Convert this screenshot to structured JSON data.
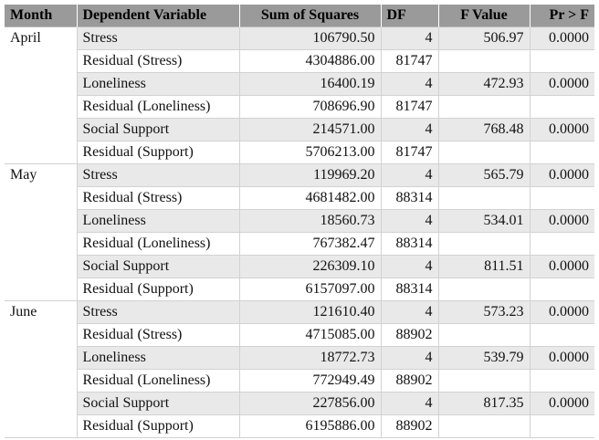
{
  "table": {
    "headers": [
      "Month",
      "Dependent Variable",
      "Sum of Squares",
      "DF",
      "F Value",
      "Pr > F"
    ],
    "groups": [
      {
        "month": "April",
        "rows": [
          {
            "dv": "Stress",
            "ss": "106790.50",
            "df": "4",
            "f": "506.97",
            "p": "0.0000"
          },
          {
            "dv": "Residual (Stress)",
            "ss": "4304886.00",
            "df": "81747",
            "f": "",
            "p": ""
          },
          {
            "dv": "Loneliness",
            "ss": "16400.19",
            "df": "4",
            "f": "472.93",
            "p": "0.0000"
          },
          {
            "dv": "Residual (Loneliness)",
            "ss": "708696.90",
            "df": "81747",
            "f": "",
            "p": ""
          },
          {
            "dv": "Social Support",
            "ss": "214571.00",
            "df": "4",
            "f": "768.48",
            "p": "0.0000"
          },
          {
            "dv": "Residual (Support)",
            "ss": "5706213.00",
            "df": "81747",
            "f": "",
            "p": ""
          }
        ]
      },
      {
        "month": "May",
        "rows": [
          {
            "dv": "Stress",
            "ss": "119969.20",
            "df": "4",
            "f": "565.79",
            "p": "0.0000"
          },
          {
            "dv": "Residual (Stress)",
            "ss": "4681482.00",
            "df": "88314",
            "f": "",
            "p": ""
          },
          {
            "dv": "Loneliness",
            "ss": "18560.73",
            "df": "4",
            "f": "534.01",
            "p": "0.0000"
          },
          {
            "dv": "Residual (Loneliness)",
            "ss": "767382.47",
            "df": "88314",
            "f": "",
            "p": ""
          },
          {
            "dv": "Social Support",
            "ss": "226309.10",
            "df": "4",
            "f": "811.51",
            "p": "0.0000"
          },
          {
            "dv": "Residual (Support)",
            "ss": "6157097.00",
            "df": "88314",
            "f": "",
            "p": ""
          }
        ]
      },
      {
        "month": "June",
        "rows": [
          {
            "dv": "Stress",
            "ss": "121610.40",
            "df": "4",
            "f": "573.23",
            "p": "0.0000"
          },
          {
            "dv": "Residual (Stress)",
            "ss": "4715085.00",
            "df": "88902",
            "f": "",
            "p": ""
          },
          {
            "dv": "Loneliness",
            "ss": "18772.73",
            "df": "4",
            "f": "539.79",
            "p": "0.0000"
          },
          {
            "dv": "Residual (Loneliness)",
            "ss": "772949.49",
            "df": "88902",
            "f": "",
            "p": ""
          },
          {
            "dv": "Social Support",
            "ss": "227856.00",
            "df": "4",
            "f": "817.35",
            "p": "0.0000"
          },
          {
            "dv": "Residual (Support)",
            "ss": "6195886.00",
            "df": "88902",
            "f": "",
            "p": ""
          }
        ]
      }
    ]
  },
  "colors": {
    "header_bg": "#9a9a9a",
    "row_shade": "#e9e9e9",
    "grid_line": "#d2d2d2"
  }
}
